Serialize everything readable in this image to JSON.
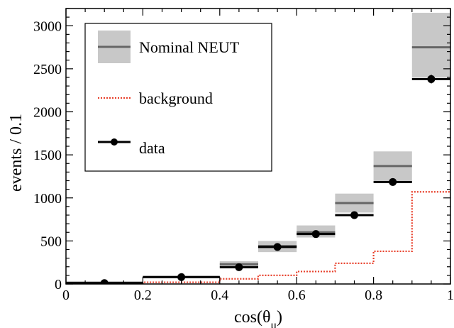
{
  "chart_data": {
    "type": "histogram",
    "xlabel_base": "cos(θ",
    "xlabel_sub": "μ",
    "xlabel_end": ")",
    "ylabel": "events / 0.1",
    "xlim": [
      0,
      1
    ],
    "ylim": [
      0,
      3200
    ],
    "x_ticks": [
      0,
      0.2,
      0.4,
      0.6,
      0.8,
      1
    ],
    "x_tick_labels": [
      "0",
      "0.2",
      "0.4",
      "0.6",
      "0.8",
      "1"
    ],
    "y_ticks": [
      0,
      500,
      1000,
      1500,
      2000,
      2500,
      3000
    ],
    "y_tick_labels": [
      "0",
      "500",
      "1000",
      "1500",
      "2000",
      "2500",
      "3000"
    ],
    "bins": [
      [
        0,
        0.2
      ],
      [
        0.2,
        0.4
      ],
      [
        0.4,
        0.5
      ],
      [
        0.5,
        0.6
      ],
      [
        0.6,
        0.7
      ],
      [
        0.7,
        0.8
      ],
      [
        0.8,
        0.9
      ],
      [
        0.9,
        1.0
      ]
    ],
    "series": [
      {
        "name": "Nominal NEUT",
        "values": [
          15,
          80,
          230,
          440,
          600,
          940,
          1370,
          2750
        ],
        "band_low": [
          12,
          70,
          195,
          370,
          540,
          830,
          1200,
          2400
        ],
        "band_high": [
          18,
          90,
          265,
          500,
          680,
          1050,
          1540,
          3150
        ],
        "color": "#666666",
        "band_color": "#c8c8c8"
      },
      {
        "name": "background",
        "values": [
          5,
          20,
          60,
          100,
          145,
          240,
          380,
          1070
        ],
        "color": "#e8412c",
        "style": "dotted"
      },
      {
        "name": "data",
        "values": [
          10,
          80,
          195,
          430,
          580,
          800,
          1185,
          2380
        ],
        "errors": [
          3,
          9,
          14,
          21,
          24,
          28,
          34,
          49
        ],
        "color": "#000000"
      }
    ],
    "legend_position": "top-left",
    "grid": false
  }
}
